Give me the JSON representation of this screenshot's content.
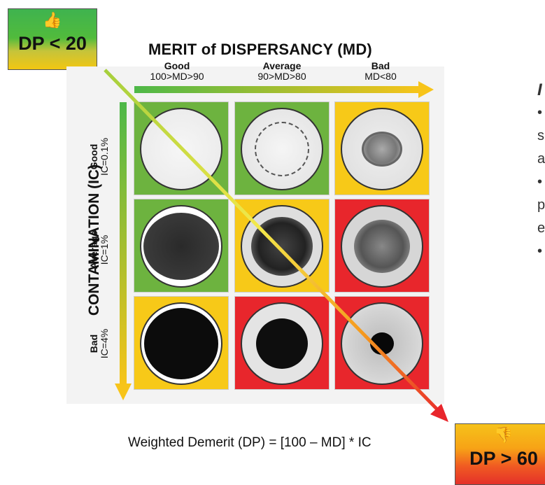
{
  "badges": {
    "top": {
      "icon": "thumbs-up-icon",
      "glyph": "👍",
      "label": "DP < 20",
      "color": "#4cb848"
    },
    "bottom": {
      "icon": "thumbs-down-icon",
      "glyph": "👎",
      "label": "DP > 60",
      "color": "#e83a26"
    }
  },
  "title": "MERIT of DISPERSANCY (MD)",
  "columns": [
    {
      "name": "Good",
      "range": "100>MD>90"
    },
    {
      "name": "Average",
      "range": "90>MD>80"
    },
    {
      "name": "Bad",
      "range": "MD<80"
    }
  ],
  "y_axis_label": "CONTAMINATION (IC)",
  "rows": [
    {
      "name": "Good",
      "range": "IC=0.1%"
    },
    {
      "name": "Average",
      "range": "IC=1%"
    },
    {
      "name": "Bad",
      "range": "IC=4%"
    }
  ],
  "cell_colors": {
    "green": "#6db33f",
    "yellow": "#f7c918",
    "red": "#e8262c"
  },
  "grid": [
    [
      "green",
      "green",
      "yellow"
    ],
    [
      "green",
      "yellow",
      "red"
    ],
    [
      "yellow",
      "red",
      "red"
    ]
  ],
  "formula": "Weighted Demerit (DP) = [100 – MD] * IC",
  "side_text_fragments": [
    "I",
    "•",
    "s",
    "a",
    "•",
    "p",
    "e",
    "•"
  ]
}
